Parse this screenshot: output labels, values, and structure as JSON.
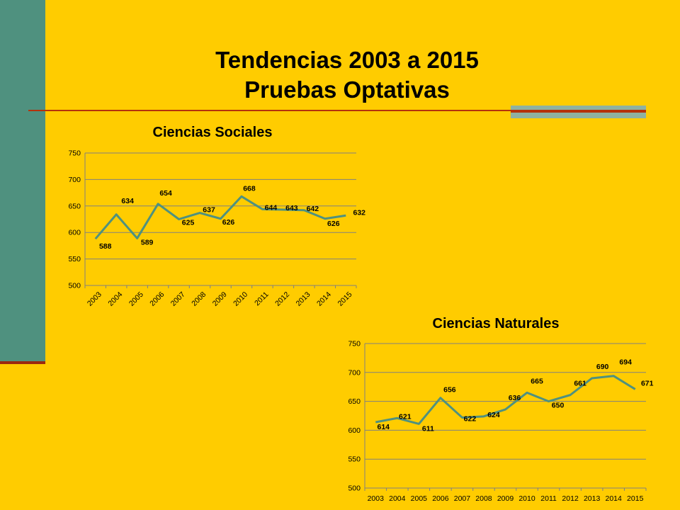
{
  "slide": {
    "title_line1": "Tendencias 2003 a 2015",
    "title_line2": "Pruebas Optativas",
    "colors": {
      "background": "#FFCC00",
      "accent_bar": "#4F917F",
      "rule": "#B5310B",
      "line": "#4F917F"
    }
  },
  "chart_data": [
    {
      "type": "line",
      "title": "Ciencias Sociales",
      "categories": [
        "2003",
        "2004",
        "2005",
        "2006",
        "2007",
        "2008",
        "2009",
        "2010",
        "2011",
        "2012",
        "2013",
        "2014",
        "2015"
      ],
      "values": [
        588,
        634,
        589,
        654,
        625,
        637,
        626,
        668,
        644,
        643,
        642,
        626,
        632
      ],
      "ylim": [
        500,
        750
      ],
      "yticks": [
        500,
        550,
        600,
        650,
        700,
        750
      ],
      "grid": true,
      "x_tick_rotation": "rotated"
    },
    {
      "type": "line",
      "title": "Ciencias Naturales",
      "categories": [
        "2003",
        "2004",
        "2005",
        "2006",
        "2007",
        "2008",
        "2009",
        "2010",
        "2011",
        "2012",
        "2013",
        "2014",
        "2015"
      ],
      "values": [
        614,
        621,
        611,
        656,
        622,
        624,
        636,
        665,
        650,
        661,
        690,
        694,
        671
      ],
      "ylim": [
        500,
        750
      ],
      "yticks": [
        500,
        550,
        600,
        650,
        700,
        750
      ],
      "grid": true,
      "x_tick_rotation": "horizontal"
    }
  ]
}
